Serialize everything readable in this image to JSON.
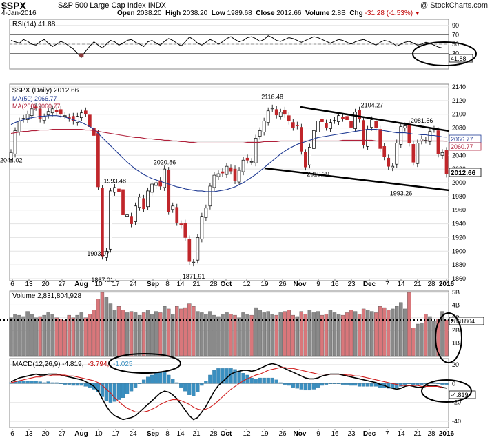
{
  "header": {
    "symbol": "$SPX",
    "name": "S&P 500 Large Cap Index",
    "exchange": "INDX",
    "copyright": "@ StockCharts.com",
    "date": "4-Jan-2016",
    "open_label": "Open",
    "open": "2038.20",
    "high_label": "High",
    "high": "2038.20",
    "low_label": "Low",
    "low": "1989.68",
    "close_label": "Close",
    "close": "2012.66",
    "volume_label": "Volume",
    "volume": "2.8B",
    "chg_label": "Chg",
    "chg": "-31.28 (-1.53%)"
  },
  "rsi_panel": {
    "legend": "RSI(14) 41.88",
    "value_tag": "41.88",
    "ticks": [
      "90",
      "70",
      "50",
      "30"
    ]
  },
  "price_panel": {
    "legend_main": "$SPX (Daily) 2012.66",
    "legend_ma50": "MA(50) 2066.77",
    "legend_ma200": "MA(200) 2060.77",
    "ma50_tag": "2066.77",
    "ma200_tag": "2060.77",
    "close_tag": "2012.66",
    "ticks": [
      "2140",
      "2120",
      "2100",
      "2080",
      "2060",
      "2040",
      "2020",
      "2000",
      "1980",
      "1960",
      "1940",
      "1920",
      "1900",
      "1880",
      "1860"
    ],
    "annotations": [
      "2044.02",
      "1993.48",
      "2020.86",
      "2116.48",
      "2104.27",
      "2081.56",
      "1903.07",
      "1867.01",
      "1871.91",
      "2019.39",
      "1993.26"
    ]
  },
  "volume_panel": {
    "legend": "Volume 2,831,804,928",
    "value_tag": "2831804",
    "ticks": [
      "5B",
      "4B",
      "3B",
      "2B",
      "1B"
    ]
  },
  "macd_panel": {
    "legend_main": "MACD(12,26,9) -4.819,",
    "legend_signal": "-3.794,",
    "legend_hist": "-1.025",
    "value_tag": "-4.819",
    "ticks": [
      "20",
      "0",
      "-20",
      "-40"
    ]
  },
  "x_axis": {
    "labels": [
      "6",
      "13",
      "20",
      "27",
      "Aug",
      "10",
      "17",
      "24",
      "Sep",
      "8",
      "14",
      "21",
      "28",
      "Oct",
      "12",
      "19",
      "26",
      "Nov",
      "9",
      "16",
      "23",
      "Dec",
      "7",
      "14",
      "21",
      "28",
      "2016"
    ]
  },
  "chart_data": [
    {
      "type": "line",
      "name": "RSI(14)",
      "ylim": [
        0,
        100
      ],
      "reference_lines": [
        70,
        30
      ],
      "y": [
        58,
        55,
        52,
        60,
        56,
        50,
        48,
        55,
        60,
        52,
        45,
        50,
        56,
        52,
        46,
        40,
        30,
        22,
        35,
        46,
        55,
        48,
        42,
        50,
        58,
        55,
        48,
        52,
        58,
        60,
        54,
        50,
        45,
        55,
        58,
        52,
        48,
        56,
        62,
        58,
        52,
        46,
        55,
        65,
        60,
        52,
        48,
        54,
        60,
        56,
        50,
        55,
        62,
        66,
        60,
        55,
        58,
        64,
        66,
        62,
        56,
        60,
        68,
        64,
        58,
        56,
        60,
        64,
        62,
        58,
        54,
        58,
        62,
        66,
        64,
        60,
        56,
        52,
        56,
        60,
        58,
        54,
        50,
        55,
        58,
        60,
        56,
        52,
        48,
        54,
        58,
        56,
        52,
        46,
        50,
        54,
        56,
        52,
        48,
        50,
        54,
        52,
        48,
        44,
        42,
        41.88
      ]
    },
    {
      "type": "line",
      "name": "$SPX (Daily)",
      "ylim": [
        1860,
        2140
      ],
      "y": [
        2044,
        2076,
        2090,
        2094,
        2100,
        2108,
        2110,
        2093,
        2096,
        2104,
        2108,
        2104,
        2100,
        2098,
        2094,
        2090,
        2097,
        2102,
        2101,
        2082,
        2069,
        1994,
        1893,
        1900,
        1988,
        1993,
        1987,
        1953,
        1953,
        1940,
        1966,
        1979,
        1962,
        1988,
        1998,
        2000,
        1995,
        2020,
        1958,
        1966,
        1942,
        1938,
        1920,
        1885,
        1884,
        1920,
        1951,
        1963,
        1995,
        2011,
        2013,
        2014,
        2024,
        2017,
        2003,
        2018,
        2033,
        2033,
        2031,
        2065,
        2076,
        2090,
        2105,
        2109,
        2099,
        2103,
        2100,
        2090,
        2081,
        2083,
        2046,
        2023,
        2052,
        2076,
        2090,
        2089,
        2081,
        2088,
        2091,
        2098,
        2094,
        2092,
        2081,
        2103,
        2093,
        2055,
        2078,
        2092,
        2080,
        2050,
        2038,
        2024,
        2024,
        2058,
        2082,
        2083,
        2058,
        2030,
        2058,
        2064,
        2062,
        2075,
        2078,
        2042,
        2044,
        2012.66
      ]
    },
    {
      "type": "line",
      "name": "MA(50)",
      "ylim": [
        1860,
        2140
      ],
      "y": [
        2085,
        2088,
        2090,
        2092,
        2094,
        2095,
        2096,
        2097,
        2097,
        2098,
        2098,
        2098,
        2097,
        2096,
        2094,
        2092,
        2090,
        2088,
        2085,
        2082,
        2078,
        2072,
        2066,
        2060,
        2054,
        2048,
        2042,
        2036,
        2030,
        2025,
        2020,
        2016,
        2012,
        2009,
        2006,
        2004,
        2002,
        2000,
        1998,
        1996,
        1994,
        1993,
        1991,
        1990,
        1989,
        1988,
        1988,
        1987,
        1987,
        1987,
        1988,
        1989,
        1990,
        1992,
        1994,
        1997,
        2000,
        2004,
        2008,
        2012,
        2017,
        2022,
        2027,
        2032,
        2037,
        2042,
        2046,
        2050,
        2053,
        2056,
        2058,
        2060,
        2062,
        2064,
        2066,
        2067,
        2068,
        2069,
        2070,
        2071,
        2072,
        2073,
        2074,
        2075,
        2076,
        2077,
        2078,
        2078,
        2078,
        2077,
        2076,
        2075,
        2074,
        2073,
        2073,
        2073,
        2072,
        2071,
        2071,
        2070,
        2070,
        2069,
        2069,
        2068,
        2067,
        2066.77
      ]
    },
    {
      "type": "line",
      "name": "MA(200)",
      "ylim": [
        1860,
        2140
      ],
      "y": [
        2072,
        2073,
        2074,
        2075,
        2075,
        2076,
        2076,
        2077,
        2077,
        2077,
        2078,
        2078,
        2078,
        2078,
        2078,
        2078,
        2078,
        2078,
        2077,
        2077,
        2076,
        2075,
        2074,
        2073,
        2072,
        2071,
        2070,
        2069,
        2068,
        2067,
        2066,
        2066,
        2065,
        2064,
        2064,
        2063,
        2063,
        2062,
        2062,
        2061,
        2061,
        2060,
        2060,
        2059,
        2059,
        2058,
        2058,
        2058,
        2058,
        2058,
        2058,
        2058,
        2058,
        2058,
        2058,
        2058,
        2058,
        2059,
        2059,
        2059,
        2059,
        2060,
        2060,
        2060,
        2060,
        2061,
        2061,
        2061,
        2061,
        2061,
        2061,
        2061,
        2061,
        2061,
        2061,
        2061,
        2061,
        2061,
        2061,
        2061,
        2062,
        2062,
        2062,
        2062,
        2062,
        2062,
        2062,
        2062,
        2061,
        2061,
        2061,
        2061,
        2061,
        2061,
        2061,
        2061,
        2061,
        2061,
        2061,
        2061,
        2061,
        2061,
        2061,
        2061,
        2061,
        2060.77
      ]
    },
    {
      "type": "bar",
      "name": "Volume (billions)",
      "ylim": [
        0,
        5
      ],
      "values": [
        3.0,
        3.3,
        3.2,
        3.1,
        3.5,
        3.3,
        3.0,
        3.1,
        3.2,
        3.4,
        3.3,
        3.0,
        2.9,
        2.8,
        3.2,
        3.0,
        3.2,
        3.4,
        3.0,
        3.3,
        3.6,
        4.5,
        5.0,
        4.6,
        4.1,
        3.6,
        3.9,
        3.6,
        3.4,
        3.5,
        3.4,
        3.2,
        3.4,
        3.6,
        3.3,
        3.5,
        3.4,
        3.9,
        3.7,
        3.3,
        3.9,
        3.7,
        3.8,
        4.1,
        3.9,
        3.5,
        3.4,
        3.3,
        3.5,
        3.2,
        3.1,
        3.3,
        3.4,
        3.3,
        3.2,
        3.0,
        3.4,
        3.3,
        3.2,
        3.8,
        3.6,
        3.4,
        3.5,
        3.3,
        3.2,
        3.4,
        3.5,
        3.6,
        3.2,
        3.1,
        3.5,
        3.3,
        3.6,
        3.4,
        3.5,
        3.2,
        3.3,
        3.6,
        3.4,
        3.3,
        3.2,
        3.4,
        3.6,
        3.5,
        3.3,
        3.7,
        3.6,
        3.5,
        3.4,
        3.9,
        3.8,
        3.6,
        3.7,
        3.9,
        4.2,
        3.7,
        5.0,
        2.2,
        2.5,
        2.6,
        3.3,
        3.1,
        2.7,
        2.9,
        3.5,
        2.83
      ]
    },
    {
      "type": "line",
      "name": "MACD(12,26,9)",
      "ylim": [
        -45,
        25
      ],
      "y": [
        2,
        4,
        6,
        7,
        8,
        9,
        10,
        9,
        9,
        10,
        10,
        10,
        9,
        8,
        7,
        6,
        5,
        4,
        2,
        0,
        -3,
        -8,
        -16,
        -24,
        -30,
        -34,
        -36,
        -38,
        -37,
        -36,
        -34,
        -30,
        -26,
        -22,
        -18,
        -14,
        -10,
        -8,
        -9,
        -12,
        -16,
        -22,
        -28,
        -34,
        -38,
        -36,
        -30,
        -24,
        -16,
        -8,
        -2,
        2,
        6,
        10,
        12,
        13,
        14,
        14,
        13,
        14,
        16,
        18,
        20,
        21,
        20,
        18,
        16,
        14,
        12,
        10,
        8,
        6,
        5,
        5,
        6,
        8,
        9,
        10,
        10,
        10,
        9,
        8,
        7,
        6,
        5,
        4,
        3,
        2,
        1,
        -1,
        -2,
        -4,
        -5,
        -6,
        -5,
        -3,
        -2,
        -3,
        -4,
        -4,
        -3,
        -2,
        -2,
        -3,
        -4,
        -4.819
      ]
    },
    {
      "type": "line",
      "name": "Signal",
      "ylim": [
        -45,
        25
      ],
      "y": [
        1,
        2,
        3,
        4,
        5,
        6,
        7,
        7,
        8,
        8,
        9,
        9,
        9,
        9,
        8,
        8,
        7,
        6,
        5,
        4,
        3,
        1,
        -2,
        -6,
        -10,
        -15,
        -19,
        -23,
        -26,
        -28,
        -30,
        -30,
        -30,
        -29,
        -27,
        -25,
        -22,
        -20,
        -18,
        -17,
        -17,
        -18,
        -20,
        -22,
        -25,
        -27,
        -28,
        -27,
        -25,
        -22,
        -18,
        -14,
        -10,
        -6,
        -3,
        0,
        3,
        5,
        7,
        9,
        10,
        12,
        14,
        15,
        16,
        17,
        17,
        16,
        16,
        15,
        14,
        13,
        12,
        11,
        10,
        10,
        10,
        10,
        10,
        10,
        10,
        9,
        9,
        8,
        8,
        7,
        6,
        5,
        4,
        3,
        2,
        1,
        0,
        -1,
        -2,
        -2,
        -2,
        -2,
        -2,
        -3,
        -3,
        -3,
        -3,
        -3,
        -3.794
      ]
    },
    {
      "type": "bar",
      "name": "Histogram",
      "ylim": [
        -45,
        25
      ],
      "values": [
        1,
        2,
        3,
        3,
        3,
        3,
        3,
        2,
        1,
        2,
        1,
        1,
        0,
        -1,
        -1,
        -2,
        -2,
        -2,
        -3,
        -4,
        -6,
        -9,
        -14,
        -18,
        -20,
        -19,
        -17,
        -15,
        -11,
        -8,
        -4,
        0,
        4,
        7,
        9,
        11,
        12,
        12,
        9,
        5,
        1,
        -4,
        -8,
        -12,
        -13,
        -9,
        -2,
        3,
        9,
        14,
        16,
        16,
        16,
        16,
        15,
        13,
        11,
        9,
        6,
        5,
        6,
        6,
        6,
        6,
        4,
        1,
        -1,
        -2,
        -4,
        -5,
        -6,
        -7,
        -7,
        -6,
        -4,
        -2,
        -1,
        0,
        0,
        0,
        -1,
        -1,
        -2,
        -2,
        -3,
        -3,
        -3,
        -3,
        -3,
        -4,
        -4,
        -5,
        -5,
        -5,
        -3,
        -1,
        0,
        -1,
        -1,
        -1,
        0,
        1,
        1,
        0,
        -1,
        -1.025
      ]
    }
  ]
}
